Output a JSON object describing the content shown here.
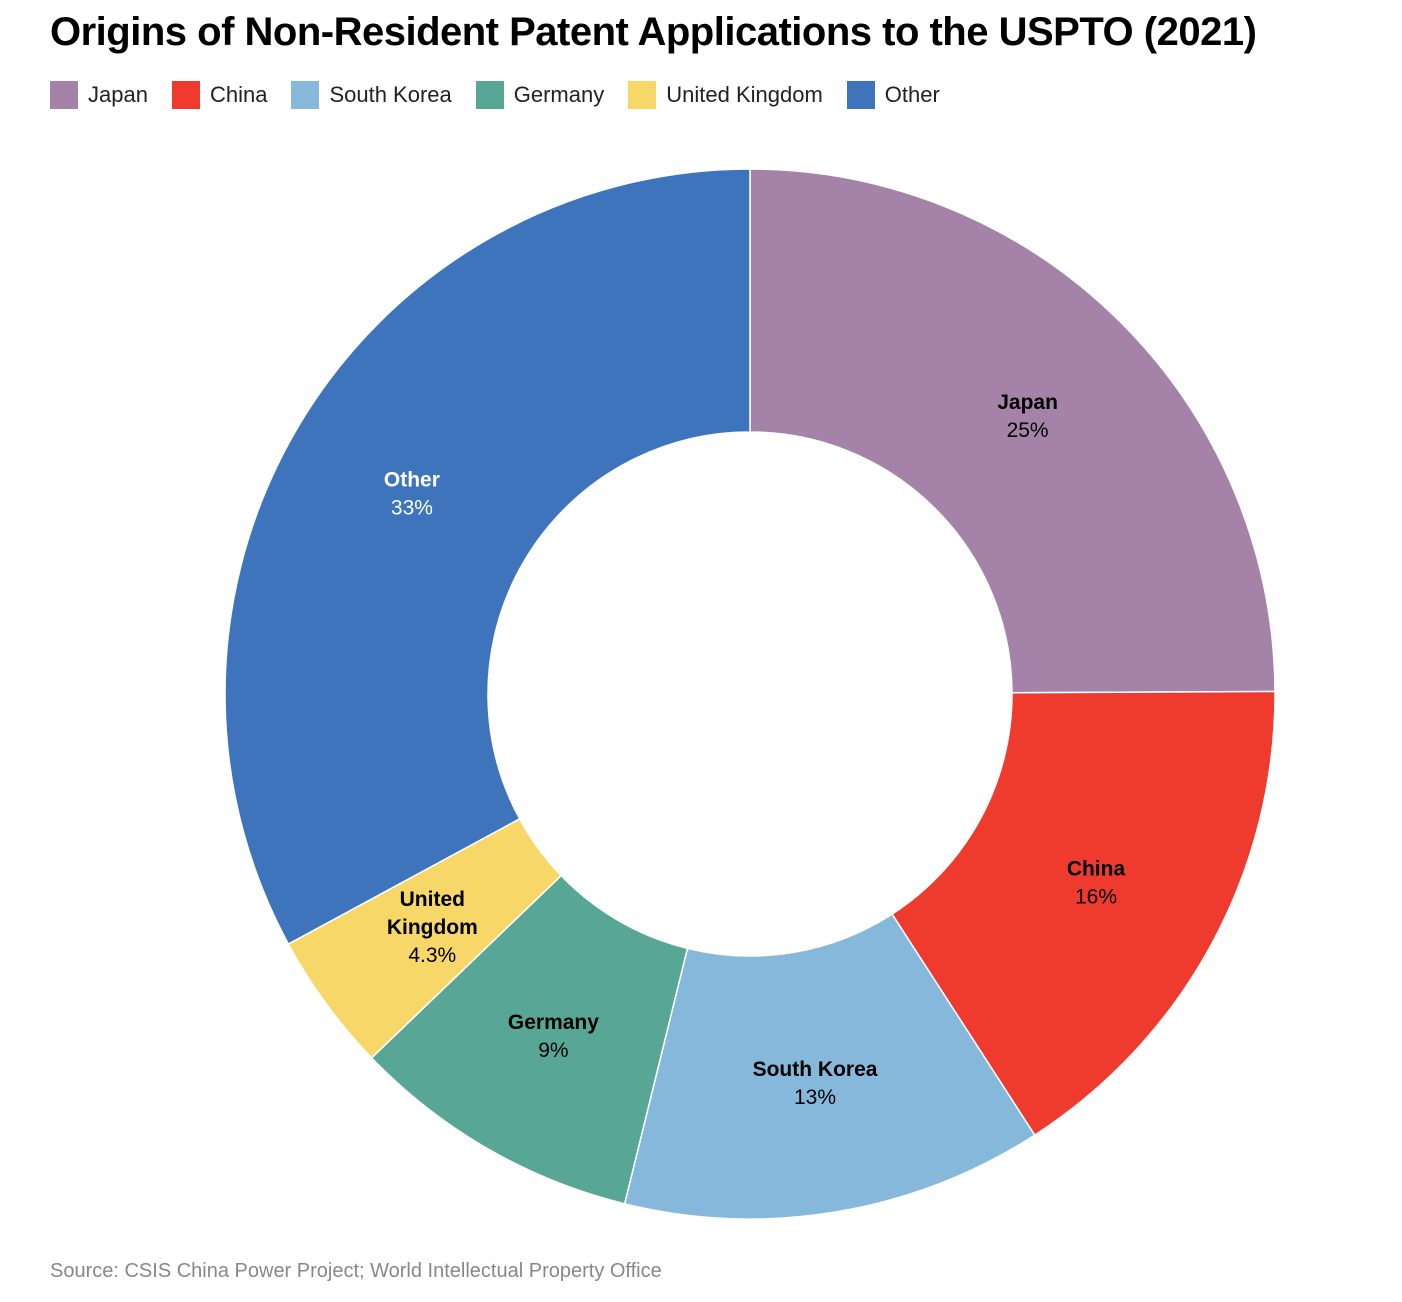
{
  "title": "Origins of Non-Resident Patent Applications to the USPTO (2021)",
  "source": "Source: CSIS China Power Project; World Intellectual Property Office",
  "legend": [
    {
      "label": "Japan",
      "color": "#A583A9"
    },
    {
      "label": "China",
      "color": "#EE3B2D"
    },
    {
      "label": "South Korea",
      "color": "#85B8DA"
    },
    {
      "label": "Germany",
      "color": "#58A796"
    },
    {
      "label": "United Kingdom",
      "color": "#F6D768"
    },
    {
      "label": "Other",
      "color": "#3D74BC"
    }
  ],
  "chart_data": {
    "type": "pie",
    "variant": "donut",
    "title": "Origins of Non-Resident Patent Applications to the USPTO (2021)",
    "start_angle": "12 o'clock",
    "direction": "clockwise",
    "slices": [
      {
        "label": "Japan",
        "label_lines": [
          "Japan"
        ],
        "value": 25,
        "value_label": "25%",
        "color": "#A583A9",
        "text_color": "#000000"
      },
      {
        "label": "China",
        "label_lines": [
          "China"
        ],
        "value": 16,
        "value_label": "16%",
        "color": "#EE3B2D",
        "text_color": "#000000"
      },
      {
        "label": "South Korea",
        "label_lines": [
          "South Korea"
        ],
        "value": 13,
        "value_label": "13%",
        "color": "#85B8DA",
        "text_color": "#000000"
      },
      {
        "label": "Germany",
        "label_lines": [
          "Germany"
        ],
        "value": 9,
        "value_label": "9%",
        "color": "#58A796",
        "text_color": "#000000"
      },
      {
        "label": "United Kingdom",
        "label_lines": [
          "United",
          "Kingdom"
        ],
        "value": 4.3,
        "value_label": "4.3%",
        "color": "#F6D768",
        "text_color": "#000000"
      },
      {
        "label": "Other",
        "label_lines": [
          "Other"
        ],
        "value": 33,
        "value_label": "33%",
        "color": "#3D74BC",
        "text_color": "#FFFFFF"
      }
    ],
    "legend_position": "top-left"
  }
}
